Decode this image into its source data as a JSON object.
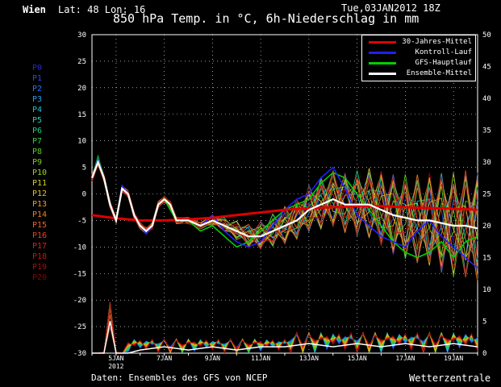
{
  "header": {
    "location": "Wien",
    "coords": "Lat: 48 Lon: 16",
    "title": "850 hPa Temp. in °C, 6h-Niederschlag in mm",
    "run": "Tue,03JAN2012 18Z"
  },
  "footer": {
    "source": "Daten: Ensembles des GFS von NCEP",
    "brand": "Wetterzentrale"
  },
  "legend": [
    {
      "label": "30-Jahres-Mittel",
      "color": "#e00000"
    },
    {
      "label": "Kontroll-Lauf",
      "color": "#2020ff"
    },
    {
      "label": "GFS-Hauptlauf",
      "color": "#00d000"
    },
    {
      "label": "Ensemble-Mittel",
      "color": "#ffffff"
    }
  ],
  "members": [
    {
      "label": "P0",
      "color": "#2828c8"
    },
    {
      "label": "P1",
      "color": "#2850e0"
    },
    {
      "label": "P2",
      "color": "#2878f0"
    },
    {
      "label": "P3",
      "color": "#20a0f0"
    },
    {
      "label": "P4",
      "color": "#20c0d8"
    },
    {
      "label": "P5",
      "color": "#20d0b0"
    },
    {
      "label": "P6",
      "color": "#20d080"
    },
    {
      "label": "P7",
      "color": "#30d040"
    },
    {
      "label": "P8",
      "color": "#50d020"
    },
    {
      "label": "P9",
      "color": "#78d020"
    },
    {
      "label": "P10",
      "color": "#a0d020"
    },
    {
      "label": "P11",
      "color": "#d0d020"
    },
    {
      "label": "P12",
      "color": "#e8c020"
    },
    {
      "label": "P13",
      "color": "#f0a020"
    },
    {
      "label": "P14",
      "color": "#f08020"
    },
    {
      "label": "P15",
      "color": "#f06020"
    },
    {
      "label": "P16",
      "color": "#f04020"
    },
    {
      "label": "P17",
      "color": "#e02020"
    },
    {
      "label": "P18",
      "color": "#c01818"
    },
    {
      "label": "P19",
      "color": "#a01010"
    },
    {
      "label": "P20",
      "color": "#800808"
    }
  ],
  "chart_data": {
    "type": "line",
    "title": "850 hPa Temp. in °C, 6h-Niederschlag in mm",
    "left_axis": {
      "ylim": [
        -30,
        30
      ],
      "ticks": [
        "30",
        "25",
        "20",
        "15",
        "10",
        "5",
        "0",
        "-5",
        "-10",
        "-15",
        "-20",
        "-25",
        "-30"
      ]
    },
    "right_axis": {
      "ylim": [
        0,
        50
      ],
      "ticks": [
        "50",
        "45",
        "40",
        "35",
        "30",
        "25",
        "20",
        "15",
        "10",
        "5",
        "0"
      ]
    },
    "x_ticks": [
      "5JAN",
      "7JAN",
      "9JAN",
      "11JAN",
      "13JAN",
      "15JAN",
      "17JAN",
      "19JAN"
    ],
    "x_sub": "2012",
    "xlim": [
      4,
      20
    ],
    "grid": true,
    "legend_position": "top-right",
    "series": [
      {
        "name": "30-Jahres-Mittel",
        "color": "#e00000",
        "x": [
          4,
          5,
          6,
          7,
          8,
          9,
          10,
          11,
          12,
          13,
          14,
          15,
          16,
          17,
          18,
          19,
          20
        ],
        "y": [
          -4,
          -4.6,
          -5,
          -5,
          -4.8,
          -4.5,
          -4,
          -3.5,
          -3,
          -2.7,
          -2.5,
          -2.3,
          -2.3,
          -2.5,
          -2.7,
          -2.8,
          -3
        ]
      },
      {
        "name": "Ensemble-Mittel",
        "color": "#ffffff",
        "x": [
          4,
          4.25,
          4.5,
          4.75,
          5,
          5.25,
          5.5,
          5.75,
          6,
          6.25,
          6.5,
          6.75,
          7,
          7.25,
          7.5,
          8,
          8.5,
          9,
          9.5,
          10,
          10.5,
          11,
          11.5,
          12,
          12.5,
          13,
          13.5,
          14,
          14.5,
          15,
          15.5,
          16,
          16.5,
          17,
          17.5,
          18,
          18.5,
          19,
          19.5,
          20
        ],
        "y": [
          3,
          6,
          3,
          -2,
          -5,
          1,
          0,
          -4,
          -6,
          -7,
          -6,
          -2,
          -1,
          -2,
          -5,
          -5,
          -6,
          -5,
          -6,
          -7,
          -8,
          -8,
          -7,
          -6,
          -5,
          -3,
          -2,
          -1,
          -2,
          -2,
          -2,
          -3,
          -4,
          -4.5,
          -5,
          -5,
          -5.5,
          -6,
          -6,
          -6.5
        ]
      },
      {
        "name": "Kontroll-Lauf",
        "color": "#2020ff",
        "x": [
          4,
          4.25,
          4.5,
          4.75,
          5,
          5.25,
          5.5,
          5.75,
          6,
          6.25,
          6.5,
          6.75,
          7,
          7.25,
          7.5,
          8,
          8.5,
          9,
          9.5,
          10,
          10.5,
          11,
          11.5,
          12,
          12.5,
          13,
          13.5,
          14,
          14.5,
          15,
          15.5,
          16,
          16.5,
          17,
          17.5,
          18,
          18.5,
          19,
          19.5,
          20
        ],
        "y": [
          3,
          6.5,
          3,
          -2,
          -5,
          1.5,
          0,
          -4,
          -6,
          -7.5,
          -6,
          -2,
          -1,
          -2,
          -5,
          -5,
          -6,
          -4,
          -7,
          -9,
          -10,
          -9,
          -6,
          -3,
          -1,
          0,
          3,
          5,
          1,
          -4,
          -6,
          -8,
          -9,
          -10,
          -7,
          -5,
          -8,
          -10,
          -12,
          -14
        ]
      },
      {
        "name": "GFS-Hauptlauf",
        "color": "#00d000",
        "x": [
          4,
          4.25,
          4.5,
          4.75,
          5,
          5.25,
          5.5,
          5.75,
          6,
          6.25,
          6.5,
          6.75,
          7,
          7.25,
          7.5,
          8,
          8.5,
          9,
          9.5,
          10,
          10.5,
          11,
          11.5,
          12,
          12.5,
          13,
          13.5,
          14,
          14.5,
          15,
          15.5,
          16,
          16.5,
          17,
          17.5,
          18,
          18.5,
          19,
          19.5,
          20
        ],
        "y": [
          3,
          7,
          3,
          -2,
          -5,
          1,
          0,
          -4,
          -6,
          -7,
          -6,
          -2,
          -1,
          -3,
          -5,
          -5,
          -7,
          -6,
          -8,
          -10,
          -9,
          -7,
          -5,
          -3,
          -2,
          -1,
          2,
          4,
          3,
          0,
          -3,
          -6,
          -9,
          -11,
          -12,
          -11,
          -9,
          -12,
          -9,
          -8
        ]
      }
    ],
    "precip_mean": {
      "x": [
        4,
        4.5,
        4.75,
        5,
        5.5,
        6,
        7,
        8,
        9,
        10,
        11,
        12,
        13,
        14,
        15,
        16,
        17,
        18,
        19,
        20
      ],
      "y": [
        0,
        0,
        5,
        0,
        0,
        0.5,
        1,
        0.5,
        1,
        0.5,
        1,
        1,
        1.5,
        1,
        1.5,
        1,
        1.5,
        1,
        1.5,
        1
      ]
    }
  }
}
